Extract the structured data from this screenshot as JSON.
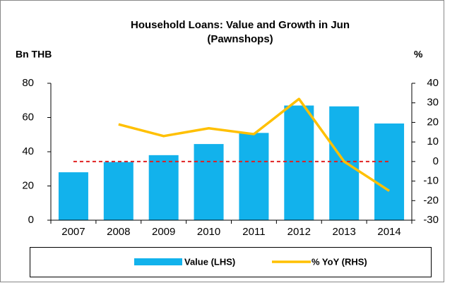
{
  "chart_data": {
    "type": "bar_line",
    "title": [
      "Household Loans: Value and Growth in Jun",
      "(Pawnshops)"
    ],
    "ylabel": "Bn THB",
    "y2label": "%",
    "categories": [
      "2007",
      "2008",
      "2009",
      "2010",
      "2011",
      "2012",
      "2013",
      "2014"
    ],
    "series": [
      {
        "name": "Value (LHS)",
        "type": "bar",
        "color": "#12b2ec",
        "values": [
          28,
          34,
          38,
          44.5,
          51,
          67,
          66.5,
          56.5
        ]
      },
      {
        "name": "% YoY (RHS)",
        "type": "line",
        "axis": "y2",
        "color": "#ffc000",
        "values": [
          null,
          19,
          13,
          17,
          14,
          32,
          0,
          -15
        ]
      }
    ],
    "ylim": [
      0,
      80
    ],
    "yticks": [
      0,
      20,
      40,
      60,
      80
    ],
    "y2lim": [
      -30,
      40
    ],
    "y2ticks": [
      -30,
      -20,
      -10,
      0,
      10,
      20,
      30,
      40
    ],
    "y2_reference": 0,
    "reference_color": "#e02020"
  }
}
